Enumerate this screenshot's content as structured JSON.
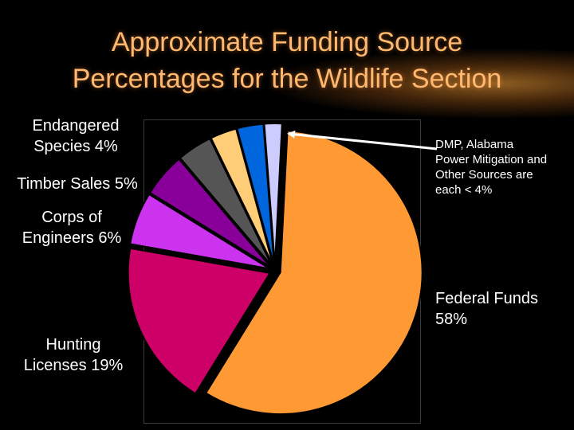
{
  "title": {
    "line1": "Approximate Funding Source",
    "line2": "Percentages for the Wildlife Section"
  },
  "labels": {
    "endangered": [
      "Endangered",
      "Species 4%"
    ],
    "timber": "Timber Sales 5%",
    "corps": [
      "Corps of",
      "Engineers 6%"
    ],
    "hunting": [
      "Hunting",
      "Licenses 19%"
    ],
    "federal": [
      "Federal Funds",
      "58%"
    ],
    "note": [
      "DMP, Alabama",
      "Power Mitigation and",
      "Other Sources are",
      "each < 4%"
    ]
  },
  "colors": {
    "title": "#ffb870",
    "frame": "#3a3a3a"
  },
  "chart_data": {
    "type": "pie",
    "title": "Approximate Funding Source Percentages for the Wildlife Section",
    "slices": [
      {
        "label": "Federal Funds",
        "value": 58,
        "color": "#ff9933"
      },
      {
        "label": "Hunting Licenses",
        "value": 19,
        "color": "#cc0066"
      },
      {
        "label": "Corps of Engineers",
        "value": 6,
        "color": "#cc33ee"
      },
      {
        "label": "Timber Sales",
        "value": 5,
        "color": "#880099"
      },
      {
        "label": "Endangered Species",
        "value": 4,
        "color": "#555555"
      },
      {
        "label": "",
        "value": 3,
        "color": "#ffcc77"
      },
      {
        "label": "",
        "value": 3,
        "color": "#0066dd"
      },
      {
        "label": "",
        "value": 2,
        "color": "#ccccff"
      }
    ],
    "exploded": true
  }
}
